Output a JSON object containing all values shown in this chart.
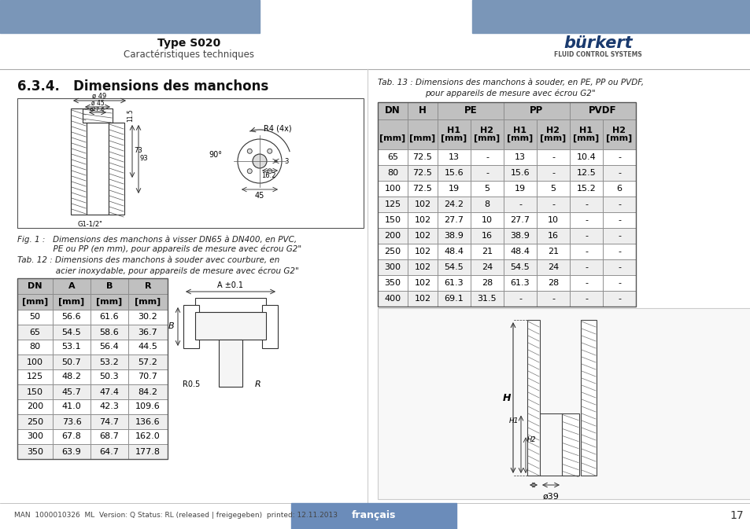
{
  "page_bg": "#ffffff",
  "header_bar_color": "#7a96b8",
  "header_title": "Type S020",
  "header_subtitle": "Caractéristiques techniques",
  "fig1_caption_line1": "Fig. 1 :   Dimensions des manchons à visser DN65 à DN400, en PVC,",
  "fig1_caption_line2": "              PE ou PP (en mm), pour appareils de mesure avec écrou G2\"",
  "tab12_caption_line1": "Tab. 12 : Dimensions des manchons à souder avec courbure, en",
  "tab12_caption_line2": "               acier inoxydable, pour appareils de mesure avec écrou G2\"",
  "tab13_caption_line1": "Tab. 13 : Dimensions des manchons à souder, en PE, PP ou PVDF,",
  "tab13_caption_line2": "pour appareils de mesure avec écrou G2\"",
  "table1_headers_row1": [
    "DN",
    "A",
    "B",
    "R"
  ],
  "table1_headers_row2": [
    "[mm]",
    "[mm]",
    "[mm]",
    "[mm]"
  ],
  "table1_data": [
    [
      "50",
      "56.6",
      "61.6",
      "30.2"
    ],
    [
      "65",
      "54.5",
      "58.6",
      "36.7"
    ],
    [
      "80",
      "53.1",
      "56.4",
      "44.5"
    ],
    [
      "100",
      "50.7",
      "53.2",
      "57.2"
    ],
    [
      "125",
      "48.2",
      "50.3",
      "70.7"
    ],
    [
      "150",
      "45.7",
      "47.4",
      "84.2"
    ],
    [
      "200",
      "41.0",
      "42.3",
      "109.6"
    ],
    [
      "250",
      "73.6",
      "74.7",
      "136.6"
    ],
    [
      "300",
      "67.8",
      "68.7",
      "162.0"
    ],
    [
      "350",
      "63.9",
      "64.7",
      "177.8"
    ]
  ],
  "table2_data": [
    [
      "65",
      "72.5",
      "13",
      "-",
      "13",
      "-",
      "10.4",
      "-"
    ],
    [
      "80",
      "72.5",
      "15.6",
      "-",
      "15.6",
      "-",
      "12.5",
      "-"
    ],
    [
      "100",
      "72.5",
      "19",
      "5",
      "19",
      "5",
      "15.2",
      "6"
    ],
    [
      "125",
      "102",
      "24.2",
      "8",
      "-",
      "-",
      "-",
      "-"
    ],
    [
      "150",
      "102",
      "27.7",
      "10",
      "27.7",
      "10",
      "-",
      "-"
    ],
    [
      "200",
      "102",
      "38.9",
      "16",
      "38.9",
      "16",
      "-",
      "-"
    ],
    [
      "250",
      "102",
      "48.4",
      "21",
      "48.4",
      "21",
      "-",
      "-"
    ],
    [
      "300",
      "102",
      "54.5",
      "24",
      "54.5",
      "24",
      "-",
      "-"
    ],
    [
      "350",
      "102",
      "61.3",
      "28",
      "61.3",
      "28",
      "-",
      "-"
    ],
    [
      "400",
      "102",
      "69.1",
      "31.5",
      "-",
      "-",
      "-",
      "-"
    ]
  ],
  "footer_text": "MAN  1000010326  ML  Version: Q Status: RL (released | freigegeben)  printed: 12.11.2013",
  "footer_lang": "français",
  "footer_page": "17",
  "footer_bar_color": "#6b8cba",
  "table_header_bg": "#c0c0c0",
  "table_row_bg_odd": "#eeeeee",
  "table_row_bg_even": "#ffffff",
  "table_border": "#888888",
  "col_divider": "#cccccc"
}
